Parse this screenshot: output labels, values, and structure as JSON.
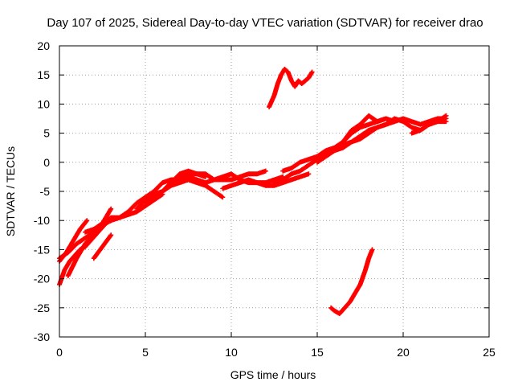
{
  "chart_data": {
    "type": "scatter",
    "title": "Day 107 of 2025, Sidereal Day-to-day VTEC variation (SDTVAR) for receiver drao",
    "xlabel": "GPS time / hours",
    "ylabel": "SDTVAR / TECUs",
    "xlim": [
      0,
      25
    ],
    "ylim": [
      -30,
      20
    ],
    "xticks": [
      0,
      5,
      10,
      15,
      20,
      25
    ],
    "yticks": [
      -30,
      -25,
      -20,
      -15,
      -10,
      -5,
      0,
      5,
      10,
      15,
      20
    ],
    "grid": true,
    "legend": "none",
    "marker": "plus",
    "color": "#ff0000",
    "series": [
      {
        "x": [
          0.0,
          0.5,
          1.0,
          1.5,
          2.0,
          2.5,
          3.0,
          3.5,
          4.0,
          4.5,
          5.0,
          5.5,
          6.0,
          6.5,
          7.0,
          7.5,
          8.0,
          8.5,
          9.0,
          9.5,
          10.0,
          10.5,
          11.0,
          11.5,
          12.0
        ],
        "y": [
          -16.5,
          -15.5,
          -14.0,
          -13.0,
          -12.0,
          -10.5,
          -9.5,
          -9.5,
          -8.5,
          -7.0,
          -6.0,
          -5.0,
          -3.5,
          -3.0,
          -3.0,
          -2.0,
          -2.0,
          -2.0,
          -3.0,
          -3.0,
          -3.0,
          -2.5,
          -2.0,
          -2.0,
          -1.5
        ]
      },
      {
        "x": [
          0.0,
          0.3,
          0.6,
          0.9,
          1.2,
          1.5,
          1.8,
          2.1,
          2.4,
          2.7,
          3.0
        ],
        "y": [
          -21.0,
          -18.5,
          -17.0,
          -16.0,
          -15.0,
          -14.5,
          -13.5,
          -12.5,
          -11.5,
          -10.5,
          -10.0
        ]
      },
      {
        "x": [
          0.0,
          0.4,
          0.8,
          1.2,
          1.6
        ],
        "y": [
          -17.0,
          -15.5,
          -13.5,
          -11.5,
          -10.0
        ]
      },
      {
        "x": [
          0.5,
          1.0,
          1.5,
          2.0,
          2.5,
          3.0
        ],
        "y": [
          -19.5,
          -16.5,
          -14.0,
          -12.5,
          -10.5,
          -8.0
        ]
      },
      {
        "x": [
          1.5,
          2.0,
          2.5,
          3.0,
          3.5,
          4.0,
          4.5,
          5.0,
          5.5,
          6.0
        ],
        "y": [
          -12.0,
          -11.5,
          -10.5,
          -10.0,
          -9.5,
          -9.0,
          -8.5,
          -7.5,
          -6.5,
          -5.5
        ]
      },
      {
        "x": [
          2.0,
          2.5,
          3.0
        ],
        "y": [
          -16.5,
          -14.5,
          -12.5
        ]
      },
      {
        "x": [
          4.5,
          5.0,
          5.5,
          6.0,
          6.5,
          7.0,
          7.5,
          8.0,
          8.5,
          9.0,
          9.5
        ],
        "y": [
          -8.0,
          -6.5,
          -5.5,
          -5.0,
          -4.0,
          -3.5,
          -3.0,
          -3.5,
          -4.0,
          -5.0,
          -6.0
        ]
      },
      {
        "x": [
          5.0,
          5.5,
          6.0,
          6.5,
          7.0,
          7.5,
          8.0,
          8.5
        ],
        "y": [
          -7.0,
          -6.0,
          -5.0,
          -3.5,
          -2.0,
          -1.5,
          -2.0,
          -2.5
        ]
      },
      {
        "x": [
          6.0,
          6.5,
          7.0,
          7.5,
          8.0,
          8.5,
          9.0,
          9.5,
          10.0,
          10.5,
          11.0,
          11.5,
          12.0,
          12.5,
          13.0
        ],
        "y": [
          -5.0,
          -3.5,
          -2.5,
          -2.5,
          -3.0,
          -3.5,
          -3.0,
          -2.5,
          -2.0,
          -3.0,
          -3.5,
          -3.5,
          -3.5,
          -3.0,
          -2.5
        ]
      },
      {
        "x": [
          9.5,
          10.0,
          10.5,
          11.0,
          11.5,
          12.0,
          12.5,
          13.0,
          13.5,
          14.0,
          14.5
        ],
        "y": [
          -4.5,
          -4.0,
          -3.5,
          -3.0,
          -3.5,
          -4.0,
          -4.0,
          -3.5,
          -3.0,
          -2.5,
          -2.0
        ]
      },
      {
        "x": [
          12.5,
          13.0,
          13.5,
          14.0,
          14.5,
          15.0,
          15.5,
          16.0,
          16.5,
          17.0,
          17.5,
          18.0,
          18.5,
          19.0,
          19.5,
          20.0,
          20.5,
          21.0,
          21.5,
          22.0,
          22.5
        ],
        "y": [
          -3.5,
          -3.0,
          -2.0,
          -1.5,
          -0.5,
          0.5,
          1.5,
          2.0,
          2.5,
          3.5,
          4.0,
          5.0,
          6.0,
          6.5,
          7.0,
          7.5,
          7.0,
          6.5,
          7.0,
          7.5,
          7.5
        ]
      },
      {
        "x": [
          13.0,
          13.5,
          14.0,
          14.5,
          15.0,
          15.5,
          16.0,
          16.5,
          17.0,
          17.5,
          18.0,
          18.5,
          19.0,
          19.5
        ],
        "y": [
          -1.5,
          -1.0,
          0.0,
          0.5,
          1.0,
          2.0,
          2.5,
          3.5,
          5.0,
          6.0,
          6.5,
          7.0,
          7.5,
          7.0
        ]
      },
      {
        "x": [
          15.0,
          15.5,
          16.0,
          16.5,
          17.0,
          17.5,
          18.0,
          18.5,
          19.0,
          19.5,
          20.0,
          20.5,
          21.0,
          21.5,
          22.0,
          22.5
        ],
        "y": [
          0.0,
          1.0,
          2.0,
          3.0,
          3.5,
          4.5,
          5.5,
          6.0,
          6.5,
          7.5,
          7.0,
          6.0,
          5.5,
          6.5,
          7.0,
          8.0
        ]
      },
      {
        "x": [
          16.5,
          17.0,
          17.5,
          18.0,
          18.5,
          19.0
        ],
        "y": [
          3.5,
          5.5,
          6.5,
          8.0,
          7.0,
          7.5
        ]
      },
      {
        "x": [
          20.5,
          21.0,
          21.5,
          22.0,
          22.5
        ],
        "y": [
          5.0,
          5.5,
          6.5,
          7.0,
          7.0
        ]
      },
      {
        "x": [
          12.2,
          12.5,
          12.7,
          12.9,
          13.1,
          13.3,
          13.5,
          13.7,
          13.9,
          14.1,
          14.3,
          14.5,
          14.7
        ],
        "y": [
          9.5,
          11.5,
          13.5,
          15.0,
          16.0,
          15.5,
          14.0,
          13.0,
          14.0,
          13.5,
          14.0,
          14.5,
          15.5
        ]
      },
      {
        "x": [
          15.8,
          16.0,
          16.3,
          16.6,
          16.9,
          17.2,
          17.5,
          17.8,
          18.0,
          18.2
        ],
        "y": [
          -25.0,
          -25.5,
          -26.0,
          -25.0,
          -24.0,
          -22.5,
          -21.0,
          -18.5,
          -16.5,
          -15.0
        ]
      }
    ]
  }
}
